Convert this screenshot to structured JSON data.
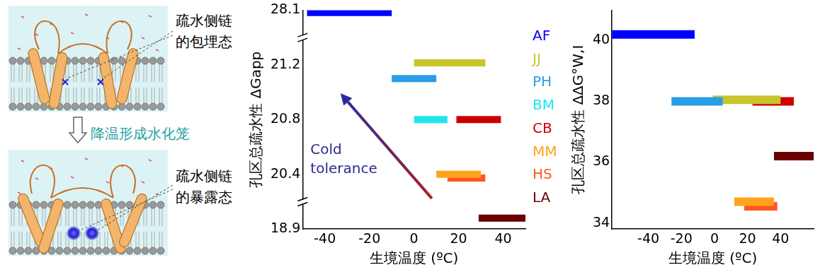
{
  "diagram": {
    "top_label": [
      "疏水侧链",
      "的包埋态"
    ],
    "transition_label": "降温形成水化笼",
    "bottom_label": [
      "疏水侧链",
      "的暴露态"
    ]
  },
  "chart_data": [
    {
      "type": "bar",
      "orientation": "horizontal",
      "x_label": "生境温度 (ºC)",
      "y_label": "孔区总疏水性 ΔGapp",
      "annotation": "Cold tolerance",
      "legend": "right",
      "grid": false,
      "xlim": [
        -50,
        50
      ],
      "xticks": [
        -40,
        -20,
        0,
        20,
        40
      ],
      "ylim": [
        18.9,
        28.1
      ],
      "yticks": [
        18.9,
        20.4,
        20.8,
        21.2,
        28.1
      ],
      "series": [
        {
          "name": "AF",
          "color": "#0000ff",
          "y": 27.8,
          "values": [
            -48,
            -10
          ]
        },
        {
          "name": "JJ",
          "color": "#c8c42a",
          "y": 21.45,
          "values": [
            0,
            32
          ]
        },
        {
          "name": "PH",
          "color": "#2a9de8",
          "y": 21.1,
          "values": [
            -10,
            10
          ]
        },
        {
          "name": "BM",
          "color": "#1ee6ee",
          "y": 20.8,
          "values": [
            0,
            15
          ]
        },
        {
          "name": "CB",
          "color": "#cc0000",
          "y": 20.8,
          "values": [
            19,
            39
          ]
        },
        {
          "name": "MM",
          "color": "#ffa31a",
          "y": 20.4,
          "values": [
            10,
            30
          ]
        },
        {
          "name": "HS",
          "color": "#ff5522",
          "y": 20.3,
          "values": [
            15,
            32
          ]
        },
        {
          "name": "LA",
          "color": "#6b0000",
          "y": 19.2,
          "values": [
            29,
            50
          ]
        }
      ]
    },
    {
      "type": "bar",
      "orientation": "horizontal",
      "x_label": "生境温度 (ºC)",
      "y_label": "孔区总疏水性 ΔΔG°W,I",
      "grid": false,
      "xlim": [
        -62,
        60
      ],
      "xticks": [
        -40,
        -20,
        0,
        20,
        40
      ],
      "ylim": [
        33.8,
        41
      ],
      "yticks": [
        34,
        36,
        38,
        40
      ],
      "series": [
        {
          "name": "AF",
          "color": "#0000ff",
          "y": 40.2,
          "values": [
            -62,
            -12
          ]
        },
        {
          "name": "PH",
          "color": "#2a9de8",
          "y": 38.0,
          "values": [
            -26,
            5
          ]
        },
        {
          "name": "JJ",
          "color": "#c8c42a",
          "y": 38.05,
          "values": [
            -1,
            40
          ]
        },
        {
          "name": "CB",
          "color": "#cc0000",
          "y": 38.0,
          "values": [
            23,
            48
          ]
        },
        {
          "name": "LA",
          "color": "#6b0000",
          "y": 36.2,
          "values": [
            36,
            60
          ]
        },
        {
          "name": "MM",
          "color": "#ffa31a",
          "y": 34.7,
          "values": [
            12,
            36
          ]
        },
        {
          "name": "HS",
          "color": "#ff5522",
          "y": 34.55,
          "values": [
            18,
            38
          ]
        }
      ]
    }
  ]
}
